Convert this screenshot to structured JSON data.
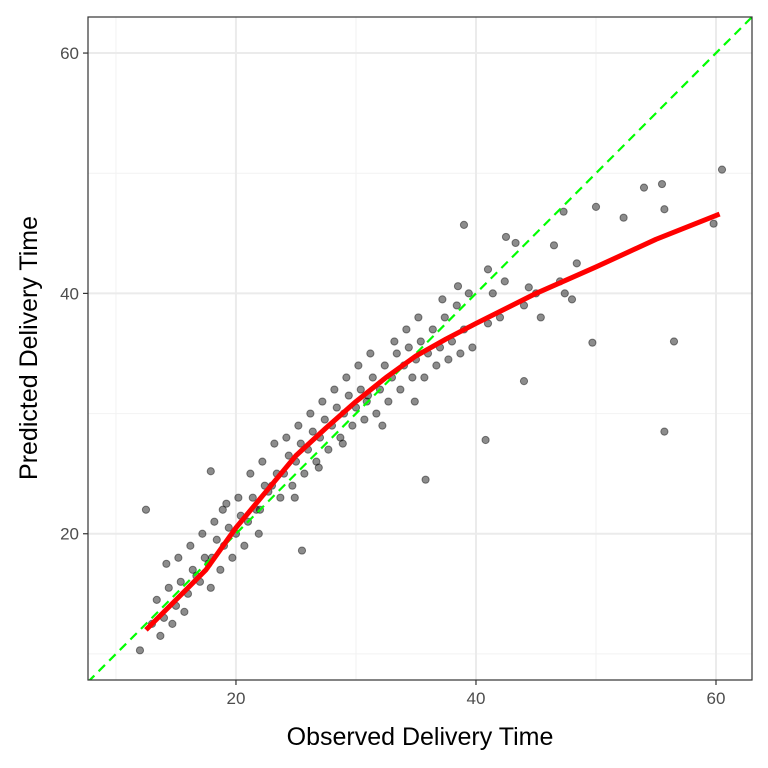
{
  "chart_data": {
    "type": "scatter",
    "x_label": "Observed Delivery Time",
    "y_label": "Predicted Delivery Time",
    "xlim": [
      7.67,
      63
    ],
    "ylim": [
      7.83,
      63
    ],
    "xticks": [
      20,
      40,
      60
    ],
    "yticks": [
      20,
      40,
      60
    ],
    "xminor": [
      10,
      30,
      50
    ],
    "yminor": [
      10,
      30,
      50
    ],
    "grid": true,
    "point_color": "#000000",
    "point_opacity": 0.45,
    "x": [
      13.0,
      13.4,
      13.7,
      14.0,
      14.4,
      14.7,
      14.2,
      15.0,
      15.4,
      15.7,
      15.2,
      16.0,
      16.4,
      16.7,
      16.2,
      17.0,
      17.4,
      17.7,
      17.2,
      17.9,
      18.0,
      18.4,
      18.7,
      18.2,
      18.9,
      19.0,
      19.4,
      19.7,
      19.2,
      20.0,
      20.4,
      20.7,
      20.2,
      21.0,
      21.4,
      21.7,
      21.2,
      21.9,
      22.0,
      22.4,
      22.7,
      22.2,
      23.0,
      23.4,
      23.7,
      23.2,
      24.0,
      24.4,
      24.7,
      24.2,
      24.9,
      25.0,
      25.4,
      25.7,
      25.2,
      26.0,
      26.4,
      26.7,
      26.2,
      26.9,
      27.0,
      27.4,
      27.7,
      27.2,
      28.0,
      28.4,
      28.7,
      28.2,
      28.9,
      29.0,
      29.4,
      29.7,
      29.2,
      30.0,
      30.4,
      30.7,
      30.2,
      30.9,
      31.0,
      31.4,
      31.7,
      31.2,
      32.0,
      32.4,
      32.7,
      32.2,
      33.0,
      33.4,
      33.7,
      33.2,
      34.0,
      34.4,
      34.7,
      34.2,
      34.9,
      35.0,
      35.4,
      35.7,
      35.2,
      36.0,
      36.4,
      36.7,
      37.0,
      37.4,
      37.7,
      37.2,
      38.0,
      38.4,
      38.7,
      39.0,
      39.4,
      39.7,
      41.0,
      41.4,
      42.0,
      42.4,
      44.0,
      44.4,
      45.0,
      45.4,
      47.0,
      47.4,
      48.0,
      48.4,
      12.5,
      12.0,
      55.7,
      56.5,
      60.5,
      50.0,
      54.0,
      55.5,
      47.3,
      40.8,
      35.8,
      25.5,
      49.7,
      44.0,
      39.0,
      59.8,
      55.7,
      52.3,
      42.5,
      43.3,
      46.5,
      38.5,
      41.0,
      17.9
    ],
    "y": [
      12.5,
      14.5,
      11.5,
      13,
      15.5,
      12.5,
      17.5,
      14,
      16,
      13.5,
      18,
      15,
      17,
      16.5,
      19,
      16,
      18,
      17.5,
      20,
      15.5,
      18,
      19.5,
      17,
      21,
      22,
      19,
      20.5,
      18,
      22.5,
      20,
      21.5,
      19,
      23,
      21,
      23,
      22,
      25,
      20,
      22,
      24,
      23.5,
      26,
      24,
      25,
      23,
      27.5,
      25,
      26.5,
      24,
      28,
      23,
      26,
      27.5,
      25,
      29,
      27,
      28.5,
      26,
      30,
      25.5,
      28,
      29.5,
      27,
      31,
      29,
      30.5,
      28,
      32,
      27.5,
      30,
      31.5,
      29,
      33,
      30.5,
      32,
      29.5,
      34,
      31,
      31.5,
      33,
      30,
      35,
      32,
      34,
      31,
      29,
      33,
      35,
      32,
      36,
      34,
      35.5,
      33,
      37,
      31,
      34.5,
      36,
      33,
      38,
      35,
      37,
      34,
      35.5,
      38,
      34.5,
      39.5,
      36,
      39,
      35,
      37,
      40,
      35.5,
      37.5,
      40,
      38,
      41,
      39,
      40.5,
      40,
      38,
      41,
      40,
      39.5,
      42.5,
      22,
      10.3,
      28.5,
      36,
      50.3,
      47.2,
      48.8,
      49.1,
      46.8,
      27.8,
      24.5,
      18.6,
      35.9,
      32.7,
      45.7,
      45.8,
      47,
      46.3,
      44.7,
      44.2,
      44,
      40.6,
      42,
      25.2
    ],
    "smooth": {
      "color": "#ff0000",
      "x": [
        12.5,
        15,
        17.5,
        20,
        22.5,
        25,
        27.5,
        30,
        32.5,
        35,
        37.5,
        40,
        45,
        50,
        55,
        60.3
      ],
      "y": [
        12,
        14.5,
        17,
        20.5,
        23.5,
        26.5,
        28.8,
        31,
        33,
        34.8,
        36.2,
        37.5,
        40,
        42.2,
        44.5,
        46.6
      ]
    },
    "reference_line": {
      "slope": 1,
      "intercept": 0,
      "color": "#00ff00"
    }
  }
}
